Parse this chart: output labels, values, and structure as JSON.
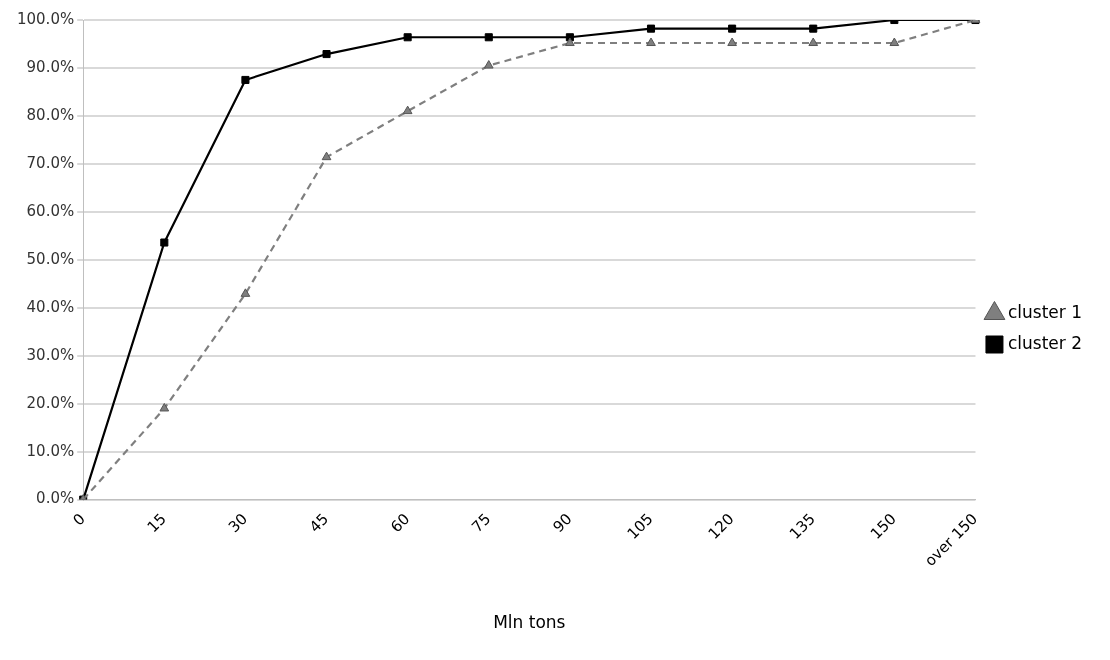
{
  "chart_data": {
    "type": "line",
    "xlabel": "Mln tons",
    "categories": [
      "0",
      "15",
      "30",
      "45",
      "60",
      "75",
      "90",
      "105",
      "120",
      "135",
      "150",
      "over 150"
    ],
    "series": [
      {
        "name": "cluster 1",
        "color": "#7f7f7f",
        "marker": "triangle",
        "line_style": "dashed",
        "values": [
          0,
          19.0,
          42.9,
          71.4,
          81.0,
          90.5,
          95.2,
          95.2,
          95.2,
          95.2,
          95.2,
          100
        ]
      },
      {
        "name": "cluster 2",
        "color": "#000000",
        "marker": "square",
        "line_style": "solid",
        "values": [
          0,
          53.6,
          87.5,
          92.9,
          96.4,
          96.4,
          96.4,
          98.2,
          98.2,
          98.2,
          100,
          100
        ]
      }
    ],
    "ylim": [
      0,
      100
    ],
    "yticks": [
      {
        "value": 0,
        "label": "0.0%"
      },
      {
        "value": 10,
        "label": "10.0%"
      },
      {
        "value": 20,
        "label": "20.0%"
      },
      {
        "value": 30,
        "label": "30.0%"
      },
      {
        "value": 40,
        "label": "40.0%"
      },
      {
        "value": 50,
        "label": "50.0%"
      },
      {
        "value": 60,
        "label": "60.0%"
      },
      {
        "value": 70,
        "label": "70.0%"
      },
      {
        "value": 80,
        "label": "80.0%"
      },
      {
        "value": 90,
        "label": "90.0%"
      },
      {
        "value": 100,
        "label": "100.0%"
      }
    ],
    "grid": "y",
    "legend": "right"
  }
}
